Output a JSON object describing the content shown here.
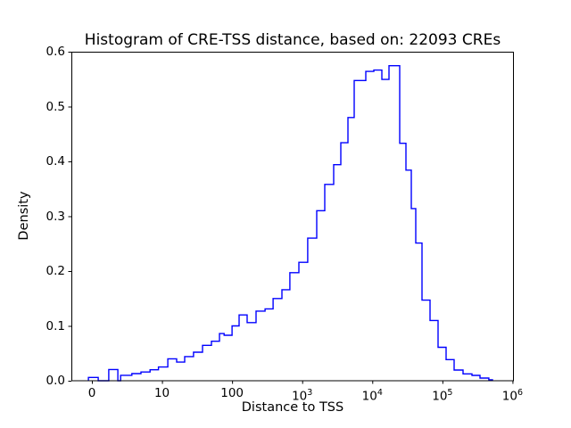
{
  "figure": {
    "title": "Histogram of CRE-TSS distance, based on: 22093 CREs",
    "xlabel": "Distance to TSS",
    "ylabel": "Density",
    "background": "#ffffff",
    "line_color": "#0000ff",
    "axis_color": "#000000"
  },
  "chart_data": {
    "type": "histogram-step",
    "title": "Histogram of CRE-TSS distance, based on: 22093 CREs",
    "xlabel": "Distance to TSS",
    "ylabel": "Density",
    "sample_count": 22093,
    "x_scale": "symlog",
    "symlog_linthresh": 10,
    "grid": false,
    "legend": false,
    "ylim": [
      0,
      0.6
    ],
    "xlim_px_note": "x axis shows 0 then log decades to 1e6",
    "y_ticks": [
      0.0,
      0.1,
      0.2,
      0.3,
      0.4,
      0.5,
      0.6
    ],
    "x_ticks": [
      {
        "v": 0,
        "label": "0"
      },
      {
        "v": 10,
        "label": "10"
      },
      {
        "v": 100,
        "label": "100"
      },
      {
        "v": 1000,
        "label": "10",
        "sup": "3"
      },
      {
        "v": 10000,
        "label": "10",
        "sup": "4"
      },
      {
        "v": 100000,
        "label": "10",
        "sup": "5"
      },
      {
        "v": 1000000,
        "label": "10",
        "sup": "6"
      }
    ],
    "bin_edges": [
      -0.5,
      0.9,
      2.4,
      3.7,
      4.1,
      5.7,
      7,
      8.3,
      9.5,
      12.1,
      16.2,
      21.1,
      28.2,
      37.9,
      50.8,
      66,
      77,
      100,
      126,
      164,
      220,
      295,
      384,
      514,
      668,
      897,
      1200,
      1610,
      2100,
      2810,
      3560,
      4500,
      5520,
      8080,
      10520,
      13680,
      17300,
      24600,
      30200,
      36000,
      41700,
      51200,
      66700,
      86700,
      113000,
      147000,
      197000,
      264000,
      344000,
      460000,
      518000
    ],
    "densities": [
      0.006,
      0,
      0.0205,
      0,
      0.01,
      0.013,
      0.016,
      0.02,
      0.025,
      0.04,
      0.034,
      0.044,
      0.052,
      0.0645,
      0.072,
      0.086,
      0.083,
      0.1,
      0.12,
      0.106,
      0.127,
      0.131,
      0.15,
      0.166,
      0.197,
      0.216,
      0.26,
      0.31,
      0.358,
      0.394,
      0.434,
      0.48,
      0.5475,
      0.564,
      0.5665,
      0.5495,
      0.5745,
      0.433,
      0.384,
      0.314,
      0.251,
      0.147,
      0.11,
      0.061,
      0.0385,
      0.0195,
      0.0125,
      0.0098,
      0.0049,
      0.0016
    ]
  }
}
